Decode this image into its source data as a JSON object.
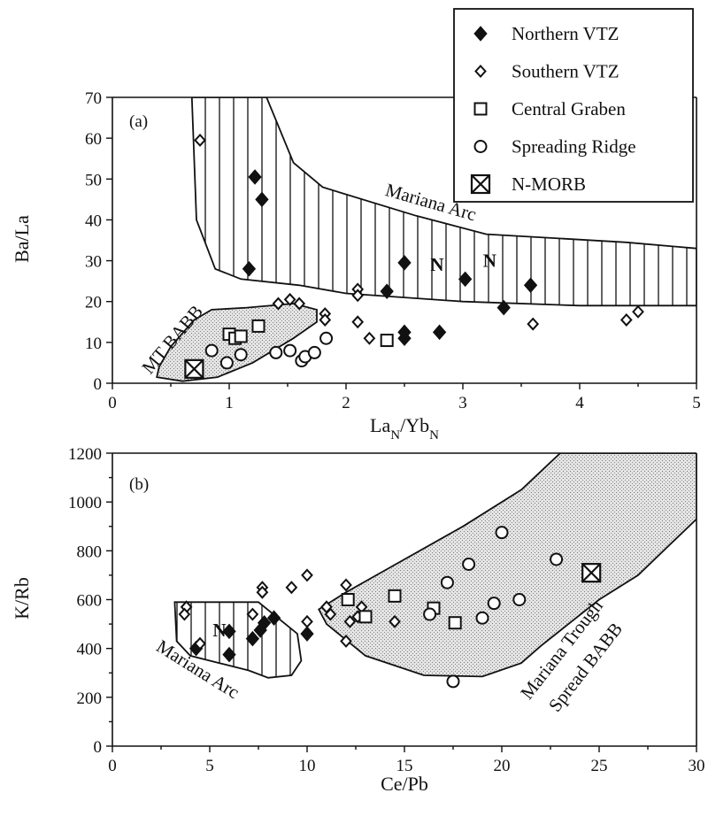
{
  "legend": [
    {
      "key": "northern",
      "label": "Northern VTZ",
      "marker": "filled-diamond"
    },
    {
      "key": "southern",
      "label": "Southern VTZ",
      "marker": "open-diamond"
    },
    {
      "key": "central",
      "label": "Central Graben",
      "marker": "open-square"
    },
    {
      "key": "ridge",
      "label": "Spreading Ridge",
      "marker": "open-circle"
    },
    {
      "key": "nmorb",
      "label": "N-MORB",
      "marker": "crossed-square"
    }
  ],
  "chart_data": [
    {
      "type": "scatter",
      "panel": "(a)",
      "xlabel_main": "La",
      "xlabel_sub1": "N",
      "xlabel_mid": "/Yb",
      "xlabel_sub2": "N",
      "ylabel": "Ba/La",
      "xlim": [
        0,
        5
      ],
      "ylim": [
        0,
        70
      ],
      "xticks": [
        0,
        1,
        2,
        3,
        4,
        5
      ],
      "yticks": [
        0,
        10,
        20,
        30,
        40,
        50,
        60,
        70
      ],
      "regions": [
        {
          "name": "Mariana Arc",
          "fill": "vertical-hatch",
          "label": "Mariana Arc",
          "polygon": [
            [
              0.68,
              70
            ],
            [
              0.72,
              40
            ],
            [
              0.88,
              28
            ],
            [
              1.1,
              25.5
            ],
            [
              1.6,
              24
            ],
            [
              2.0,
              22
            ],
            [
              3.0,
              20
            ],
            [
              4.0,
              19
            ],
            [
              5.0,
              19
            ],
            [
              5.0,
              33
            ],
            [
              4.4,
              34.5
            ],
            [
              3.2,
              36.5
            ],
            [
              2.6,
              41
            ],
            [
              1.8,
              48
            ],
            [
              1.55,
              54
            ],
            [
              1.32,
              70
            ]
          ]
        },
        {
          "name": "MT BABB",
          "fill": "stipple",
          "label": "MT BABB",
          "polygon": [
            [
              0.38,
              1.5
            ],
            [
              0.4,
              4
            ],
            [
              0.5,
              9
            ],
            [
              0.7,
              15.5
            ],
            [
              0.85,
              18
            ],
            [
              1.15,
              18.5
            ],
            [
              1.55,
              19.5
            ],
            [
              1.75,
              18
            ],
            [
              1.75,
              15
            ],
            [
              1.55,
              11
            ],
            [
              1.2,
              5
            ],
            [
              0.9,
              1.5
            ],
            [
              0.6,
              0.5
            ]
          ]
        }
      ],
      "n_labels": [
        {
          "text": "N",
          "x": 2.78,
          "y": 27.5
        },
        {
          "text": "N",
          "x": 3.23,
          "y": 28.5
        }
      ],
      "series": [
        {
          "key": "northern",
          "name": "Northern VTZ",
          "points": [
            [
              1.22,
              50.5
            ],
            [
              1.28,
              45
            ],
            [
              1.17,
              28
            ],
            [
              2.5,
              29.5
            ],
            [
              2.35,
              22.5
            ],
            [
              3.02,
              25.5
            ],
            [
              3.58,
              24
            ],
            [
              3.35,
              18.5
            ],
            [
              2.5,
              12.5
            ],
            [
              2.5,
              11
            ],
            [
              2.8,
              12.5
            ]
          ]
        },
        {
          "key": "southern",
          "name": "Southern VTZ",
          "points": [
            [
              0.75,
              59.5
            ],
            [
              1.42,
              19.5
            ],
            [
              1.52,
              20.5
            ],
            [
              1.6,
              19.5
            ],
            [
              1.82,
              17
            ],
            [
              1.82,
              15.5
            ],
            [
              2.1,
              23
            ],
            [
              2.1,
              21.5
            ],
            [
              2.1,
              15
            ],
            [
              2.2,
              11
            ],
            [
              3.6,
              14.5
            ],
            [
              4.4,
              15.5
            ],
            [
              4.5,
              17.5
            ]
          ]
        },
        {
          "key": "central",
          "name": "Central Graben",
          "points": [
            [
              1.0,
              12
            ],
            [
              1.05,
              11
            ],
            [
              1.1,
              11.5
            ],
            [
              1.25,
              14
            ],
            [
              2.35,
              10.5
            ]
          ]
        },
        {
          "key": "ridge",
          "name": "Spreading Ridge",
          "points": [
            [
              0.85,
              8
            ],
            [
              0.98,
              5
            ],
            [
              1.1,
              7
            ],
            [
              1.4,
              7.5
            ],
            [
              1.52,
              8
            ],
            [
              1.62,
              5.5
            ],
            [
              1.65,
              6.5
            ],
            [
              1.73,
              7.5
            ],
            [
              1.83,
              11
            ]
          ]
        },
        {
          "key": "nmorb",
          "name": "N-MORB",
          "points": [
            [
              0.7,
              3.5
            ]
          ]
        }
      ]
    },
    {
      "type": "scatter",
      "panel": "(b)",
      "xlabel": "Ce/Pb",
      "ylabel": "K/Rb",
      "xlim": [
        0,
        30
      ],
      "ylim": [
        0,
        1200
      ],
      "xticks": [
        0,
        5,
        10,
        15,
        20,
        25,
        30
      ],
      "yticks": [
        0,
        200,
        400,
        600,
        800,
        1000,
        1200
      ],
      "regions": [
        {
          "name": "Mariana Arc",
          "fill": "vertical-hatch",
          "label": "Mariana Arc",
          "polygon": [
            [
              3.2,
              590
            ],
            [
              7.5,
              590
            ],
            [
              9.5,
              460
            ],
            [
              9.7,
              350
            ],
            [
              9.2,
              290
            ],
            [
              8.0,
              280
            ],
            [
              7.0,
              310
            ],
            [
              5.5,
              340
            ],
            [
              4.0,
              370
            ],
            [
              3.3,
              430
            ]
          ]
        },
        {
          "name": "Mariana Trough Spread BABB",
          "fill": "stipple",
          "label1": "Mariana Trough",
          "label2": "Spread BABB",
          "polygon": [
            [
              10.6,
              560
            ],
            [
              12.0,
              630
            ],
            [
              14.0,
              720
            ],
            [
              18.0,
              900
            ],
            [
              21.0,
              1050
            ],
            [
              23.0,
              1200
            ],
            [
              30.0,
              1200
            ],
            [
              30.0,
              930
            ],
            [
              27.0,
              700
            ],
            [
              25.0,
              600
            ],
            [
              22.0,
              410
            ],
            [
              21.0,
              340
            ],
            [
              19.0,
              285
            ],
            [
              16.0,
              290
            ],
            [
              13.0,
              370
            ],
            [
              11.0,
              500
            ]
          ]
        }
      ],
      "n_labels": [
        {
          "text": "N",
          "x": 5.5,
          "y": 450
        }
      ],
      "series": [
        {
          "key": "northern",
          "name": "Northern VTZ",
          "points": [
            [
              4.3,
              400
            ],
            [
              6.0,
              470
            ],
            [
              6.0,
              375
            ],
            [
              7.2,
              440
            ],
            [
              7.6,
              475
            ],
            [
              7.8,
              505
            ],
            [
              8.3,
              525
            ],
            [
              10.0,
              460
            ]
          ]
        },
        {
          "key": "southern",
          "name": "Southern VTZ",
          "points": [
            [
              3.8,
              570
            ],
            [
              3.7,
              540
            ],
            [
              4.5,
              420
            ],
            [
              7.2,
              540
            ],
            [
              7.7,
              650
            ],
            [
              7.7,
              630
            ],
            [
              9.2,
              650
            ],
            [
              10.0,
              700
            ],
            [
              10.0,
              510
            ],
            [
              11.0,
              570
            ],
            [
              11.2,
              540
            ],
            [
              12.0,
              660
            ],
            [
              12.0,
              430
            ],
            [
              12.2,
              510
            ],
            [
              12.6,
              530
            ],
            [
              12.8,
              570
            ],
            [
              14.5,
              510
            ]
          ]
        },
        {
          "key": "central",
          "name": "Central Graben",
          "points": [
            [
              12.1,
              600
            ],
            [
              13.0,
              530
            ],
            [
              14.5,
              615
            ],
            [
              16.5,
              565
            ],
            [
              17.6,
              505
            ]
          ]
        },
        {
          "key": "ridge",
          "name": "Spreading Ridge",
          "points": [
            [
              16.3,
              540
            ],
            [
              17.2,
              670
            ],
            [
              18.3,
              745
            ],
            [
              19.0,
              525
            ],
            [
              19.6,
              585
            ],
            [
              20.0,
              875
            ],
            [
              20.9,
              600
            ],
            [
              22.8,
              765
            ],
            [
              17.5,
              265
            ]
          ]
        },
        {
          "key": "nmorb",
          "name": "N-MORB",
          "points": [
            [
              24.6,
              710
            ]
          ]
        }
      ]
    }
  ]
}
